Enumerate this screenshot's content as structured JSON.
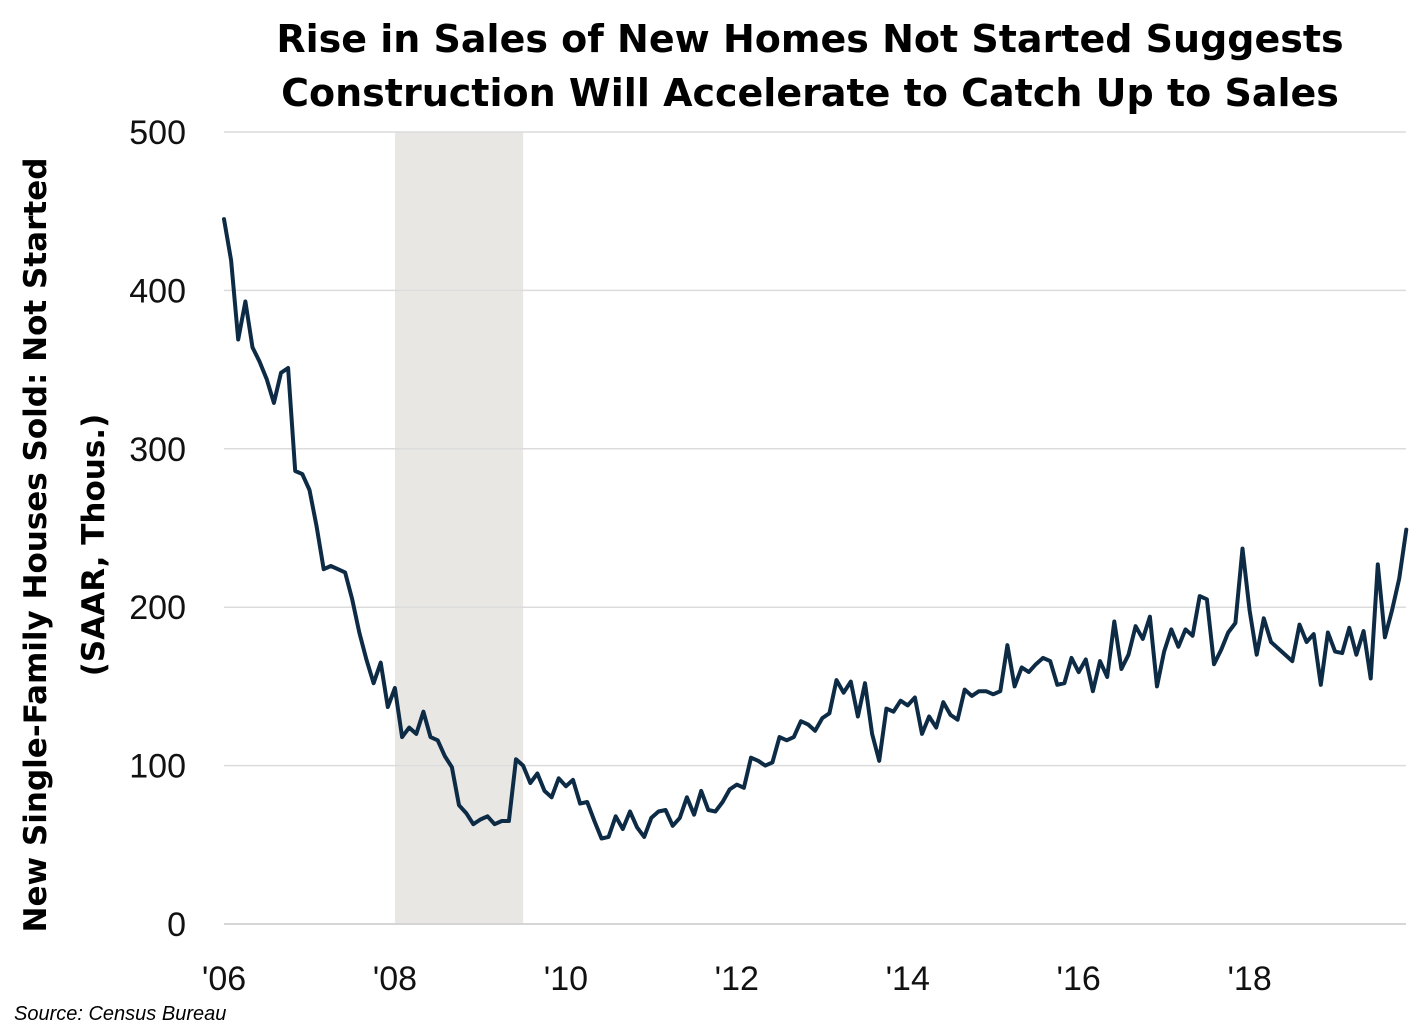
{
  "chart_data": {
    "type": "line",
    "title": [
      "Rise in Sales of New Homes Not Started Suggests",
      "Construction Will Accelerate to Catch Up to Sales"
    ],
    "ylabel": [
      "New Single-Family Houses Sold: Not Started",
      "(SAAR, Thous.)"
    ],
    "xlabel": "",
    "source": "Source: Census Bureau",
    "ylim": [
      0,
      500
    ],
    "xlim": [
      2006.0,
      2019.83
    ],
    "yticks": [
      0,
      100,
      200,
      300,
      400,
      500
    ],
    "ytick_labels": [
      "0",
      "100",
      "200",
      "300",
      "400",
      "500"
    ],
    "xticks": [
      2006,
      2008,
      2010,
      2012,
      2014,
      2016,
      2018
    ],
    "xtick_labels": [
      "'06",
      "'08",
      "'10",
      "'12",
      "'14",
      "'16",
      "'18"
    ],
    "grid": "horizontal",
    "line_color": "#0d2b45",
    "shade_color": "#e9e7e4",
    "recession": [
      2008.0,
      2009.5
    ],
    "series": [
      {
        "start": 2006.0,
        "step_months": 1,
        "values": [
          445,
          419,
          369,
          393,
          364,
          355,
          344,
          329,
          348,
          351,
          286,
          284,
          274,
          251,
          224,
          226,
          224,
          222,
          205,
          184,
          167,
          152,
          165,
          137,
          149,
          118,
          124,
          120,
          134,
          118,
          116,
          106,
          99,
          75,
          70,
          63,
          66,
          68,
          63,
          65,
          65,
          104,
          100,
          89,
          95,
          84,
          80,
          92,
          87,
          91,
          76,
          77,
          65,
          54,
          55,
          68,
          60,
          71,
          61,
          55,
          67,
          71,
          72,
          62,
          67,
          80,
          69,
          84,
          72,
          71,
          77,
          85,
          88,
          86,
          105,
          103,
          100,
          102,
          118,
          116,
          118,
          128,
          126,
          122,
          130,
          133,
          154,
          146,
          153,
          131,
          152,
          120,
          103,
          136,
          134,
          141,
          138,
          143,
          120,
          131,
          124,
          140,
          132,
          129,
          148,
          144,
          147,
          147,
          145,
          147,
          176,
          150,
          162,
          159,
          164,
          168,
          166,
          151,
          152,
          168,
          159,
          167,
          147,
          166,
          156,
          191,
          161,
          170,
          188,
          180,
          194,
          150,
          172,
          186,
          175,
          186,
          182,
          207,
          205,
          164,
          173,
          184,
          190,
          237,
          198,
          170,
          193,
          178,
          174,
          170,
          166,
          189,
          178,
          183,
          151,
          184,
          172,
          171,
          187,
          170,
          185,
          155,
          227,
          181,
          198,
          218,
          249
        ]
      }
    ]
  }
}
